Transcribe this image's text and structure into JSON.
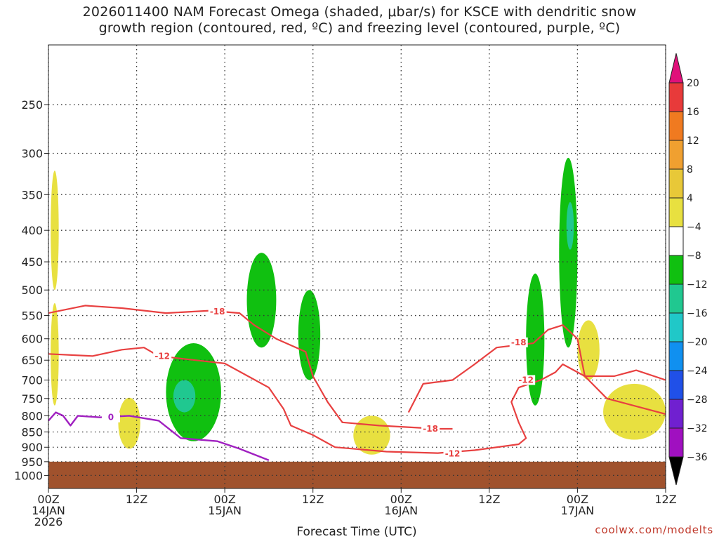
{
  "title_line1": "2026011400 NAM Forecast Omega (shaded, μbar/s) for KSCE with dendritic snow",
  "title_line2": "growth region (contoured, red, ºC) and freezing level (contoured, purple, ºC)",
  "credit": "coolwx.com/modelts",
  "chart_data": {
    "type": "time-height cross section",
    "xlabel": "Forecast Time (UTC)",
    "x_ticks": [
      {
        "hour": 0,
        "lines": [
          "00Z",
          "14JAN",
          "2026"
        ]
      },
      {
        "hour": 12,
        "lines": [
          "12Z"
        ]
      },
      {
        "hour": 24,
        "lines": [
          "00Z",
          "15JAN"
        ]
      },
      {
        "hour": 36,
        "lines": [
          "12Z"
        ]
      },
      {
        "hour": 48,
        "lines": [
          "00Z",
          "16JAN"
        ]
      },
      {
        "hour": 60,
        "lines": [
          "12Z"
        ]
      },
      {
        "hour": 72,
        "lines": [
          "00Z",
          "17JAN"
        ]
      },
      {
        "hour": 84,
        "lines": [
          "12Z"
        ]
      }
    ],
    "xlim_hours": [
      0,
      84
    ],
    "y_axis": {
      "scale": "log-pressure",
      "units": "hPa",
      "inverted": true,
      "ticks": [
        250,
        300,
        350,
        400,
        450,
        500,
        550,
        600,
        650,
        700,
        750,
        800,
        850,
        900,
        950,
        1000
      ],
      "ylim": [
        200,
        1050
      ]
    },
    "grid": true,
    "colorbar": {
      "labels": [
        "20",
        "16",
        "12",
        "8",
        "4",
        "−4",
        "−8",
        "−12",
        "−16",
        "−20",
        "−24",
        "−28",
        "−32",
        "−36"
      ],
      "colors": [
        "#ff3a6a",
        "#e83a3a",
        "#f07a20",
        "#f0a030",
        "#e8c838",
        "#e8e040",
        "#ffffff",
        "#10c010",
        "#20c890",
        "#20c8c8",
        "#1090f0",
        "#2050e8",
        "#7020d0",
        "#a010c0",
        "#a0a0a0"
      ],
      "top_arrow_color": "#e0107a",
      "bottom_arrow_color": "#000000"
    },
    "terrain_color": "#a0522d",
    "terrain_top_hpa": 950,
    "omega_regions": [
      {
        "category": "4 to 8",
        "color": "#e8e040",
        "hour_range": [
          0.3,
          1.4
        ],
        "p_range": [
          320,
          500
        ]
      },
      {
        "category": "4 to 8",
        "color": "#e8e040",
        "hour_range": [
          0.3,
          1.4
        ],
        "p_range": [
          525,
          770
        ]
      },
      {
        "category": "4 to 8",
        "color": "#e8e040",
        "hour_range": [
          9.5,
          12.5
        ],
        "p_range": [
          748,
          905
        ]
      },
      {
        "category": "4 to 8",
        "color": "#e8e040",
        "hour_range": [
          41.5,
          46.5
        ],
        "p_range": [
          800,
          925
        ]
      },
      {
        "category": "-4 to -8",
        "color": "#10c010",
        "hour_range": [
          16,
          23.5
        ],
        "p_range": [
          610,
          880
        ]
      },
      {
        "category": "-8 to -12",
        "color": "#20c890",
        "hour_range": [
          17,
          20
        ],
        "p_range": [
          700,
          790
        ]
      },
      {
        "category": "-4 to -8",
        "color": "#10c010",
        "hour_range": [
          27,
          31
        ],
        "p_range": [
          435,
          620
        ]
      },
      {
        "category": "-4 to -8",
        "color": "#10c010",
        "hour_range": [
          34,
          37
        ],
        "p_range": [
          500,
          700
        ]
      },
      {
        "category": "-4 to -8",
        "color": "#10c010",
        "hour_range": [
          65,
          67.5
        ],
        "p_range": [
          470,
          770
        ]
      },
      {
        "category": "-4 to -8",
        "color": "#10c010",
        "hour_range": [
          69.5,
          72
        ],
        "p_range": [
          305,
          620
        ]
      },
      {
        "category": "-8 to -12",
        "color": "#20c890",
        "hour_range": [
          70.5,
          71.5
        ],
        "p_range": [
          360,
          430
        ]
      },
      {
        "category": "4 to 8",
        "color": "#e8e040",
        "hour_range": [
          72,
          75
        ],
        "p_range": [
          560,
          700
        ]
      },
      {
        "category": "4 to 8",
        "color": "#e8e040",
        "hour_range": [
          75.5,
          84
        ],
        "p_range": [
          710,
          875
        ]
      }
    ],
    "contours": [
      {
        "label": "-12",
        "color": "#e84040",
        "series": [
          {
            "hour": 0,
            "hpa": 635
          },
          {
            "hour": 6,
            "hpa": 640
          },
          {
            "hour": 10,
            "hpa": 625
          },
          {
            "hour": 13,
            "hpa": 620
          },
          {
            "hour": 15,
            "hpa": 640
          },
          {
            "hour": 20,
            "hpa": 650
          },
          {
            "hour": 24,
            "hpa": 658
          },
          {
            "hour": 30,
            "hpa": 720
          },
          {
            "hour": 32,
            "hpa": 780
          },
          {
            "hour": 33,
            "hpa": 830
          },
          {
            "hour": 36,
            "hpa": 860
          },
          {
            "hour": 39,
            "hpa": 900
          },
          {
            "hour": 46,
            "hpa": 915
          },
          {
            "hour": 53,
            "hpa": 920
          },
          {
            "hour": 58,
            "hpa": 910
          },
          {
            "hour": 64,
            "hpa": 890
          },
          {
            "hour": 65,
            "hpa": 870
          },
          {
            "hour": 64,
            "hpa": 820
          },
          {
            "hour": 63,
            "hpa": 760
          },
          {
            "hour": 64,
            "hpa": 720
          },
          {
            "hour": 67,
            "hpa": 700
          },
          {
            "hour": 69,
            "hpa": 680
          },
          {
            "hour": 70,
            "hpa": 660
          },
          {
            "hour": 73,
            "hpa": 690
          },
          {
            "hour": 77,
            "hpa": 690
          },
          {
            "hour": 80,
            "hpa": 675
          },
          {
            "hour": 84,
            "hpa": 700
          }
        ]
      },
      {
        "label": "-18",
        "color": "#e84040",
        "series": [
          {
            "hour": 0,
            "hpa": 545
          },
          {
            "hour": 5,
            "hpa": 530
          },
          {
            "hour": 10,
            "hpa": 535
          },
          {
            "hour": 16,
            "hpa": 545
          },
          {
            "hour": 22,
            "hpa": 540
          },
          {
            "hour": 26,
            "hpa": 545
          },
          {
            "hour": 28,
            "hpa": 570
          },
          {
            "hour": 31,
            "hpa": 600
          },
          {
            "hour": 35,
            "hpa": 630
          },
          {
            "hour": 36,
            "hpa": 690
          },
          {
            "hour": 38,
            "hpa": 760
          },
          {
            "hour": 40,
            "hpa": 820
          },
          {
            "hour": 45,
            "hpa": 830
          },
          {
            "hour": 53,
            "hpa": 840
          },
          {
            "hour": 55,
            "hpa": 840
          }
        ]
      },
      {
        "label": "-18",
        "color": "#e84040",
        "series": [
          {
            "hour": 49,
            "hpa": 790
          },
          {
            "hour": 51,
            "hpa": 710
          },
          {
            "hour": 55,
            "hpa": 700
          },
          {
            "hour": 58,
            "hpa": 660
          },
          {
            "hour": 61,
            "hpa": 620
          },
          {
            "hour": 66,
            "hpa": 610
          },
          {
            "hour": 68,
            "hpa": 580
          },
          {
            "hour": 70,
            "hpa": 570
          },
          {
            "hour": 72,
            "hpa": 600
          },
          {
            "hour": 73,
            "hpa": 690
          },
          {
            "hour": 76,
            "hpa": 750
          },
          {
            "hour": 84,
            "hpa": 795
          }
        ]
      }
    ],
    "freezing_level": {
      "label": "0",
      "color": "#a020c0",
      "series": [
        {
          "hour": 0,
          "hpa": 815
        },
        {
          "hour": 1,
          "hpa": 790
        },
        {
          "hour": 2,
          "hpa": 800
        },
        {
          "hour": 3,
          "hpa": 830
        },
        {
          "hour": 4,
          "hpa": 800
        },
        {
          "hour": 7,
          "hpa": 805
        },
        {
          "hour": 11,
          "hpa": 800
        },
        {
          "hour": 15,
          "hpa": 815
        },
        {
          "hour": 18,
          "hpa": 870
        },
        {
          "hour": 23,
          "hpa": 880
        },
        {
          "hour": 26,
          "hpa": 905
        },
        {
          "hour": 30,
          "hpa": 945
        }
      ]
    },
    "contour_labels": [
      {
        "text": "-18",
        "hour": 23,
        "hpa": 542,
        "color": "#e84040"
      },
      {
        "text": "-12",
        "hour": 15.5,
        "hpa": 640,
        "color": "#e84040"
      },
      {
        "text": "-18",
        "hour": 52,
        "hpa": 840,
        "color": "#e84040"
      },
      {
        "text": "-12",
        "hour": 55,
        "hpa": 922,
        "color": "#e84040"
      },
      {
        "text": "-18",
        "hour": 64,
        "hpa": 608,
        "color": "#e84040"
      },
      {
        "text": "-12",
        "hour": 65,
        "hpa": 700,
        "color": "#e84040"
      },
      {
        "text": "0",
        "hour": 8.5,
        "hpa": 805,
        "color": "#a020c0"
      }
    ]
  }
}
